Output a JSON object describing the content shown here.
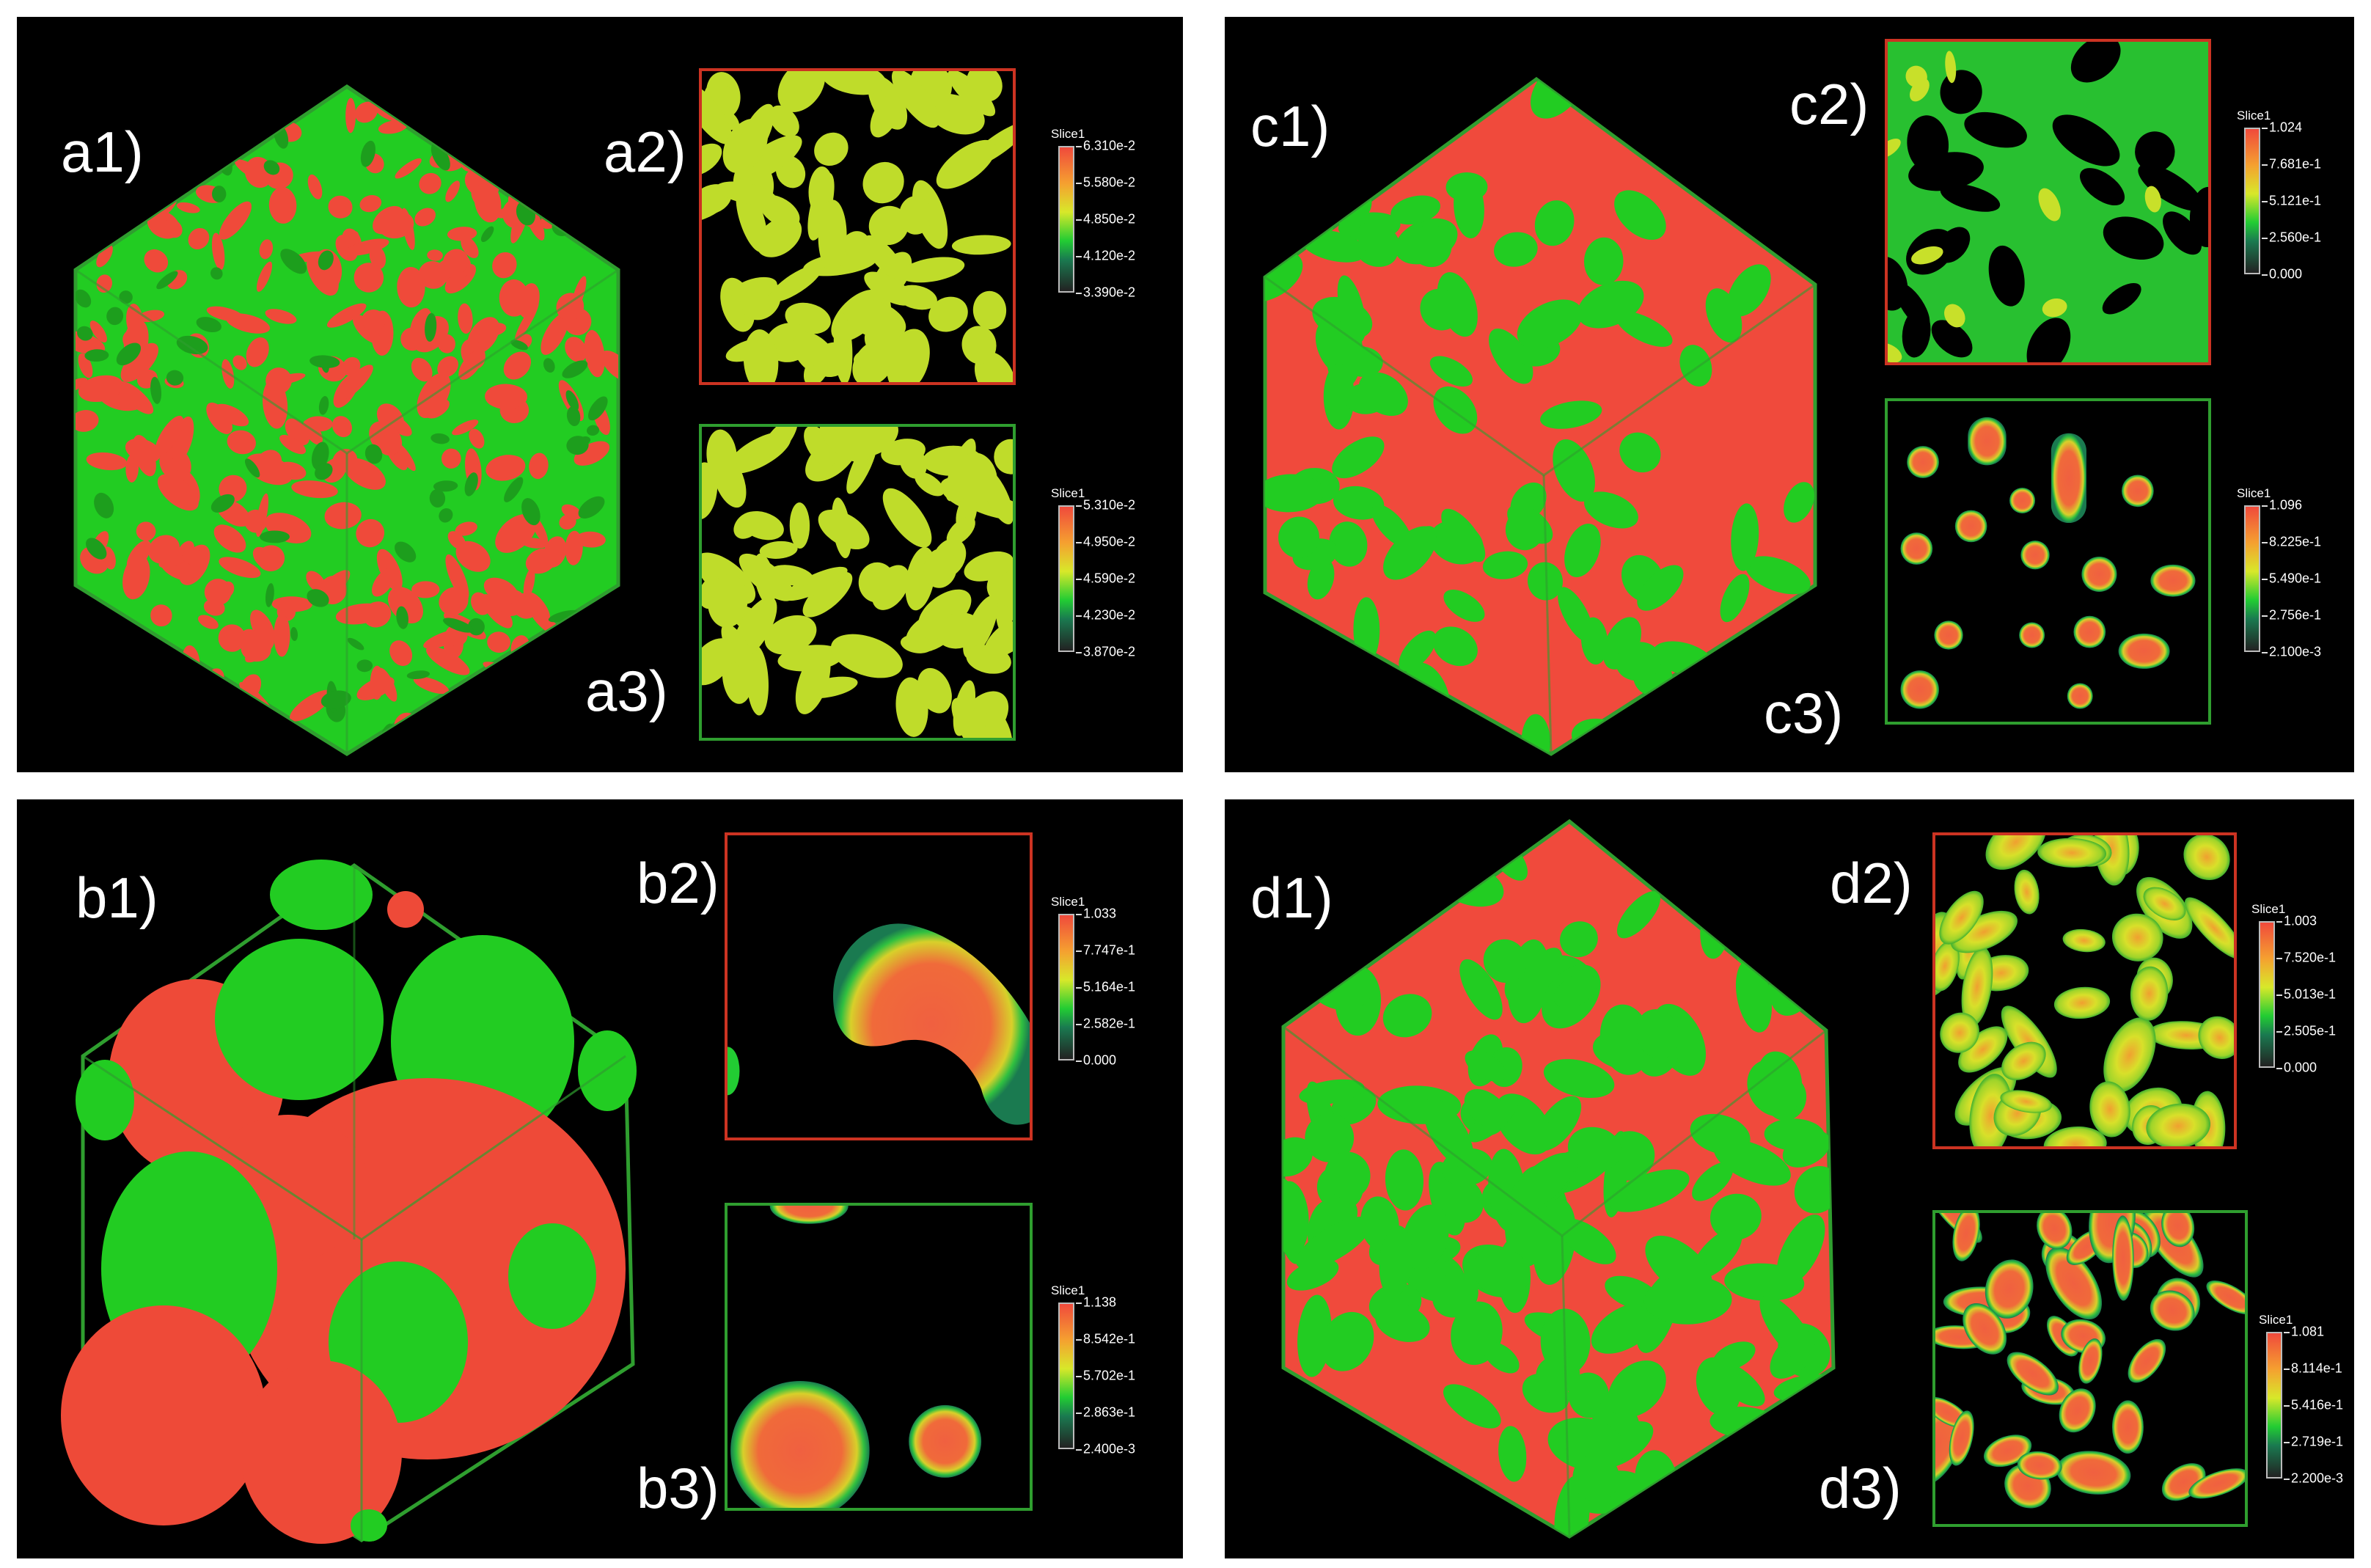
{
  "colors": {
    "background": "#000000",
    "phase_a": "#f04a3c",
    "phase_b": "#22dd22",
    "edge_green": "#2f9e2f",
    "edge_red": "#cc3322",
    "yellow": "#d6e82a"
  },
  "panels": [
    {
      "id": "a",
      "cube_label": "a1)",
      "slice_top_label": "a2)",
      "slice_bottom_label": "a3)",
      "top_bar": {
        "title": "Slice1",
        "ticks": [
          "6.310e-2",
          "5.580e-2",
          "4.850e-2",
          "4.120e-2",
          "3.390e-2"
        ]
      },
      "bottom_bar": {
        "title": "Slice1",
        "ticks": [
          "5.310e-2",
          "4.950e-2",
          "4.590e-2",
          "4.230e-2",
          "3.870e-2"
        ]
      }
    },
    {
      "id": "b",
      "cube_label": "b1)",
      "slice_top_label": "b2)",
      "slice_bottom_label": "b3)",
      "top_bar": {
        "title": "Slice1",
        "ticks": [
          "1.033",
          "7.747e-1",
          "5.164e-1",
          "2.582e-1",
          "0.000"
        ]
      },
      "bottom_bar": {
        "title": "Slice1",
        "ticks": [
          "1.138",
          "8.542e-1",
          "5.702e-1",
          "2.863e-1",
          "2.400e-3"
        ]
      }
    },
    {
      "id": "c",
      "cube_label": "c1)",
      "slice_top_label": "c2)",
      "slice_bottom_label": "c3)",
      "top_bar": {
        "title": "Slice1",
        "ticks": [
          "1.024",
          "7.681e-1",
          "5.121e-1",
          "2.560e-1",
          "0.000"
        ]
      },
      "bottom_bar": {
        "title": "Slice1",
        "ticks": [
          "1.096",
          "8.225e-1",
          "5.490e-1",
          "2.756e-1",
          "2.100e-3"
        ]
      }
    },
    {
      "id": "d",
      "cube_label": "d1)",
      "slice_top_label": "d2)",
      "slice_bottom_label": "d3)",
      "top_bar": {
        "title": "Slice1",
        "ticks": [
          "1.003",
          "7.520e-1",
          "5.013e-1",
          "2.505e-1",
          "0.000"
        ]
      },
      "bottom_bar": {
        "title": "Slice1",
        "ticks": [
          "1.081",
          "8.114e-1",
          "5.416e-1",
          "2.719e-1",
          "2.200e-3"
        ]
      }
    }
  ]
}
